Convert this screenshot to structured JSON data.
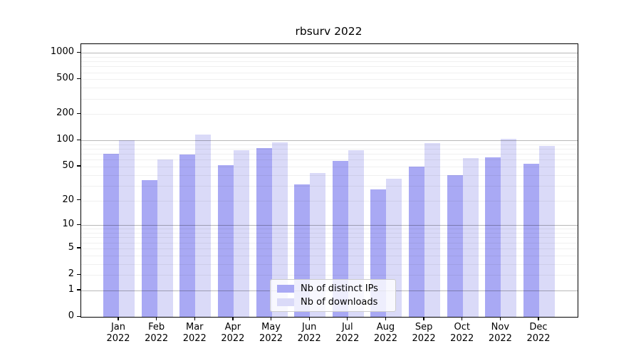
{
  "title": "rbsurv 2022",
  "chart_data": {
    "type": "bar",
    "title": "rbsurv 2022",
    "categories": [
      "Jan 2022",
      "Feb 2022",
      "Mar 2022",
      "Apr 2022",
      "May 2022",
      "Jun 2022",
      "Jul 2022",
      "Aug 2022",
      "Sep 2022",
      "Oct 2022",
      "Nov 2022",
      "Dec 2022"
    ],
    "series": [
      {
        "name": "Nb of distinct IPs",
        "color": "#a9a9f4",
        "values": [
          70,
          35,
          69,
          52,
          82,
          31,
          58,
          27,
          50,
          40,
          64,
          54
        ]
      },
      {
        "name": "Nb of downloads",
        "color": "#dadaf8",
        "values": [
          100,
          61,
          118,
          78,
          96,
          42,
          77,
          36,
          93,
          63,
          105,
          87
        ]
      }
    ],
    "xlabel": "",
    "ylabel": "",
    "y_axis": {
      "scale": "log1p",
      "tick_values": [
        0,
        1,
        2,
        5,
        10,
        20,
        50,
        100,
        200,
        500,
        1000
      ],
      "tick_labels": [
        "0",
        "1",
        "2",
        "5",
        "10",
        "20",
        "50",
        "100",
        "200",
        "500",
        "1000"
      ],
      "major_gridlines": [
        1,
        10,
        100,
        1000
      ],
      "minor_gridlines": [
        2,
        3,
        4,
        5,
        6,
        7,
        8,
        9,
        20,
        30,
        40,
        50,
        60,
        70,
        80,
        90,
        200,
        300,
        400,
        500,
        600,
        700,
        800,
        900
      ],
      "ylim": [
        0,
        1256
      ]
    },
    "grid": true,
    "legend": {
      "position": "lower center",
      "entries": [
        "Nb of distinct IPs",
        "Nb of downloads"
      ]
    }
  },
  "colors": {
    "background": "#ffffff",
    "axis": "#000000",
    "bar_distinct_ips": "#a9a9f4",
    "bar_downloads": "#dadaf8",
    "grid_major": "#b5b5b5",
    "grid_minor": "#ececec",
    "legend_border": "#cccccc"
  }
}
